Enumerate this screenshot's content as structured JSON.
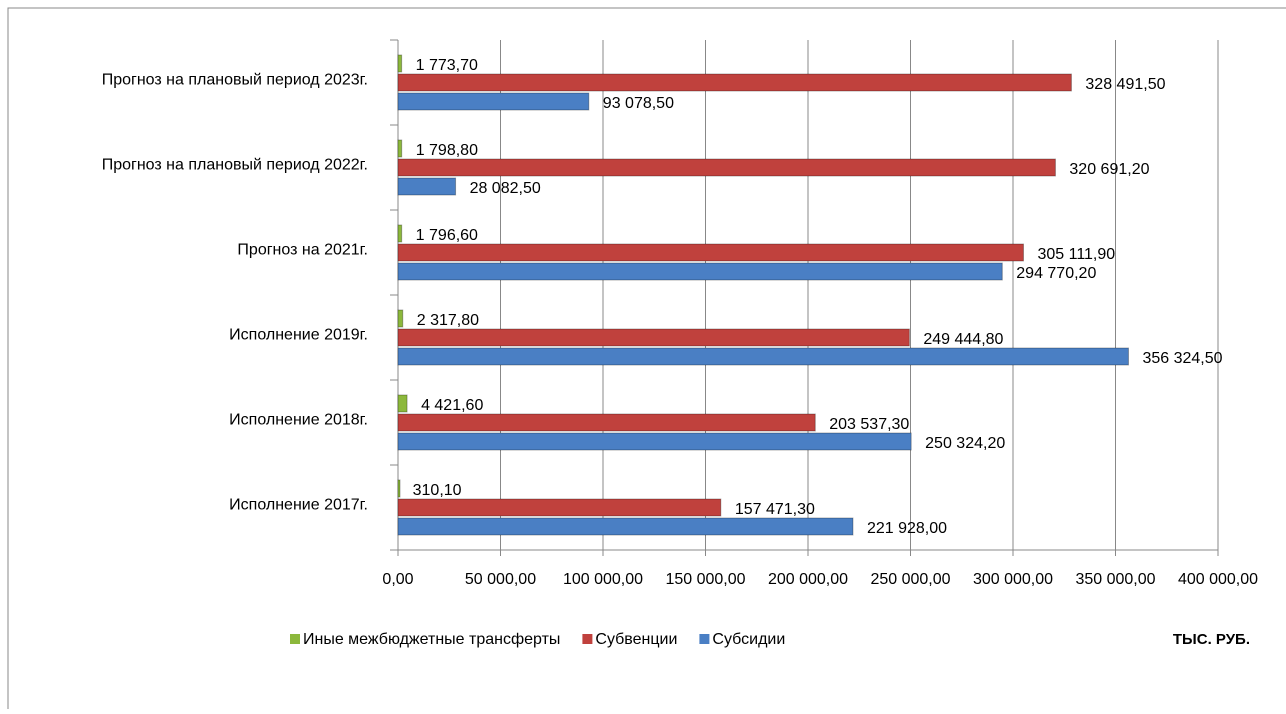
{
  "chart_data": {
    "type": "hbar",
    "categories": [
      "Исполнение 2017г.",
      "Исполнение 2018г.",
      "Исполнение  2019г.",
      "Прогноз на 2021г.",
      "Прогноз на плановый период 2022г.",
      "Прогноз на плановый период 2023г."
    ],
    "series": [
      {
        "name": "Иные межбюджетные трансферты",
        "color": "#8cb83c",
        "values": [
          310.1,
          4421.6,
          2317.8,
          1796.6,
          1798.8,
          1773.7
        ],
        "value_labels": [
          "310,10",
          "4 421,60",
          "2 317,80",
          "1 796,60",
          "1 798,80",
          "1 773,70"
        ]
      },
      {
        "name": "Субвенции",
        "color": "#c0413d",
        "values": [
          157471.3,
          203537.3,
          249444.8,
          305111.9,
          320691.2,
          328491.5
        ],
        "value_labels": [
          "157 471,30",
          "203 537,30",
          "249 444,80",
          "305 111,90",
          "320 691,20",
          "328 491,50"
        ]
      },
      {
        "name": "Субсидии",
        "color": "#4a7fc4",
        "values": [
          221928.0,
          250324.2,
          356324.5,
          294770.2,
          28082.5,
          93078.5
        ],
        "value_labels": [
          "221 928,00",
          "250 324,20",
          "356 324,50",
          "294 770,20",
          "28 082,50",
          "93 078,50"
        ]
      }
    ],
    "xlim": [
      0,
      400000
    ],
    "xticks": [
      {
        "value": 0,
        "label": "0,00"
      },
      {
        "value": 50000,
        "label": "50 000,00"
      },
      {
        "value": 100000,
        "label": "100 000,00"
      },
      {
        "value": 150000,
        "label": "150 000,00"
      },
      {
        "value": 200000,
        "label": "200 000,00"
      },
      {
        "value": 250000,
        "label": "250 000,00"
      },
      {
        "value": 300000,
        "label": "300 000,00"
      },
      {
        "value": 350000,
        "label": "350 000,00"
      },
      {
        "value": 400000,
        "label": "400 000,00"
      }
    ],
    "grid": true,
    "annotation": "ТЫС. РУБ."
  }
}
